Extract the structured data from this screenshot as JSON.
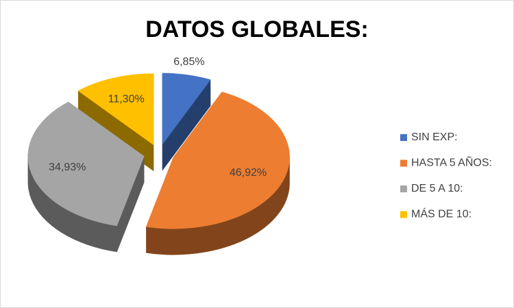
{
  "chart_data": {
    "type": "pie",
    "title": "DATOS GLOBALES:",
    "categories": [
      "SIN EXP:",
      "HASTA 5 AÑOS:",
      "DE 5 A 10:",
      "MÁS DE 10:"
    ],
    "values": [
      6.85,
      46.92,
      34.93,
      11.3
    ],
    "value_labels": [
      "6,85%",
      "46,92%",
      "34,93%",
      "11,30%"
    ],
    "colors": [
      "#4472c4",
      "#ed7d31",
      "#a5a5a5",
      "#ffc000"
    ],
    "legend": "right"
  }
}
